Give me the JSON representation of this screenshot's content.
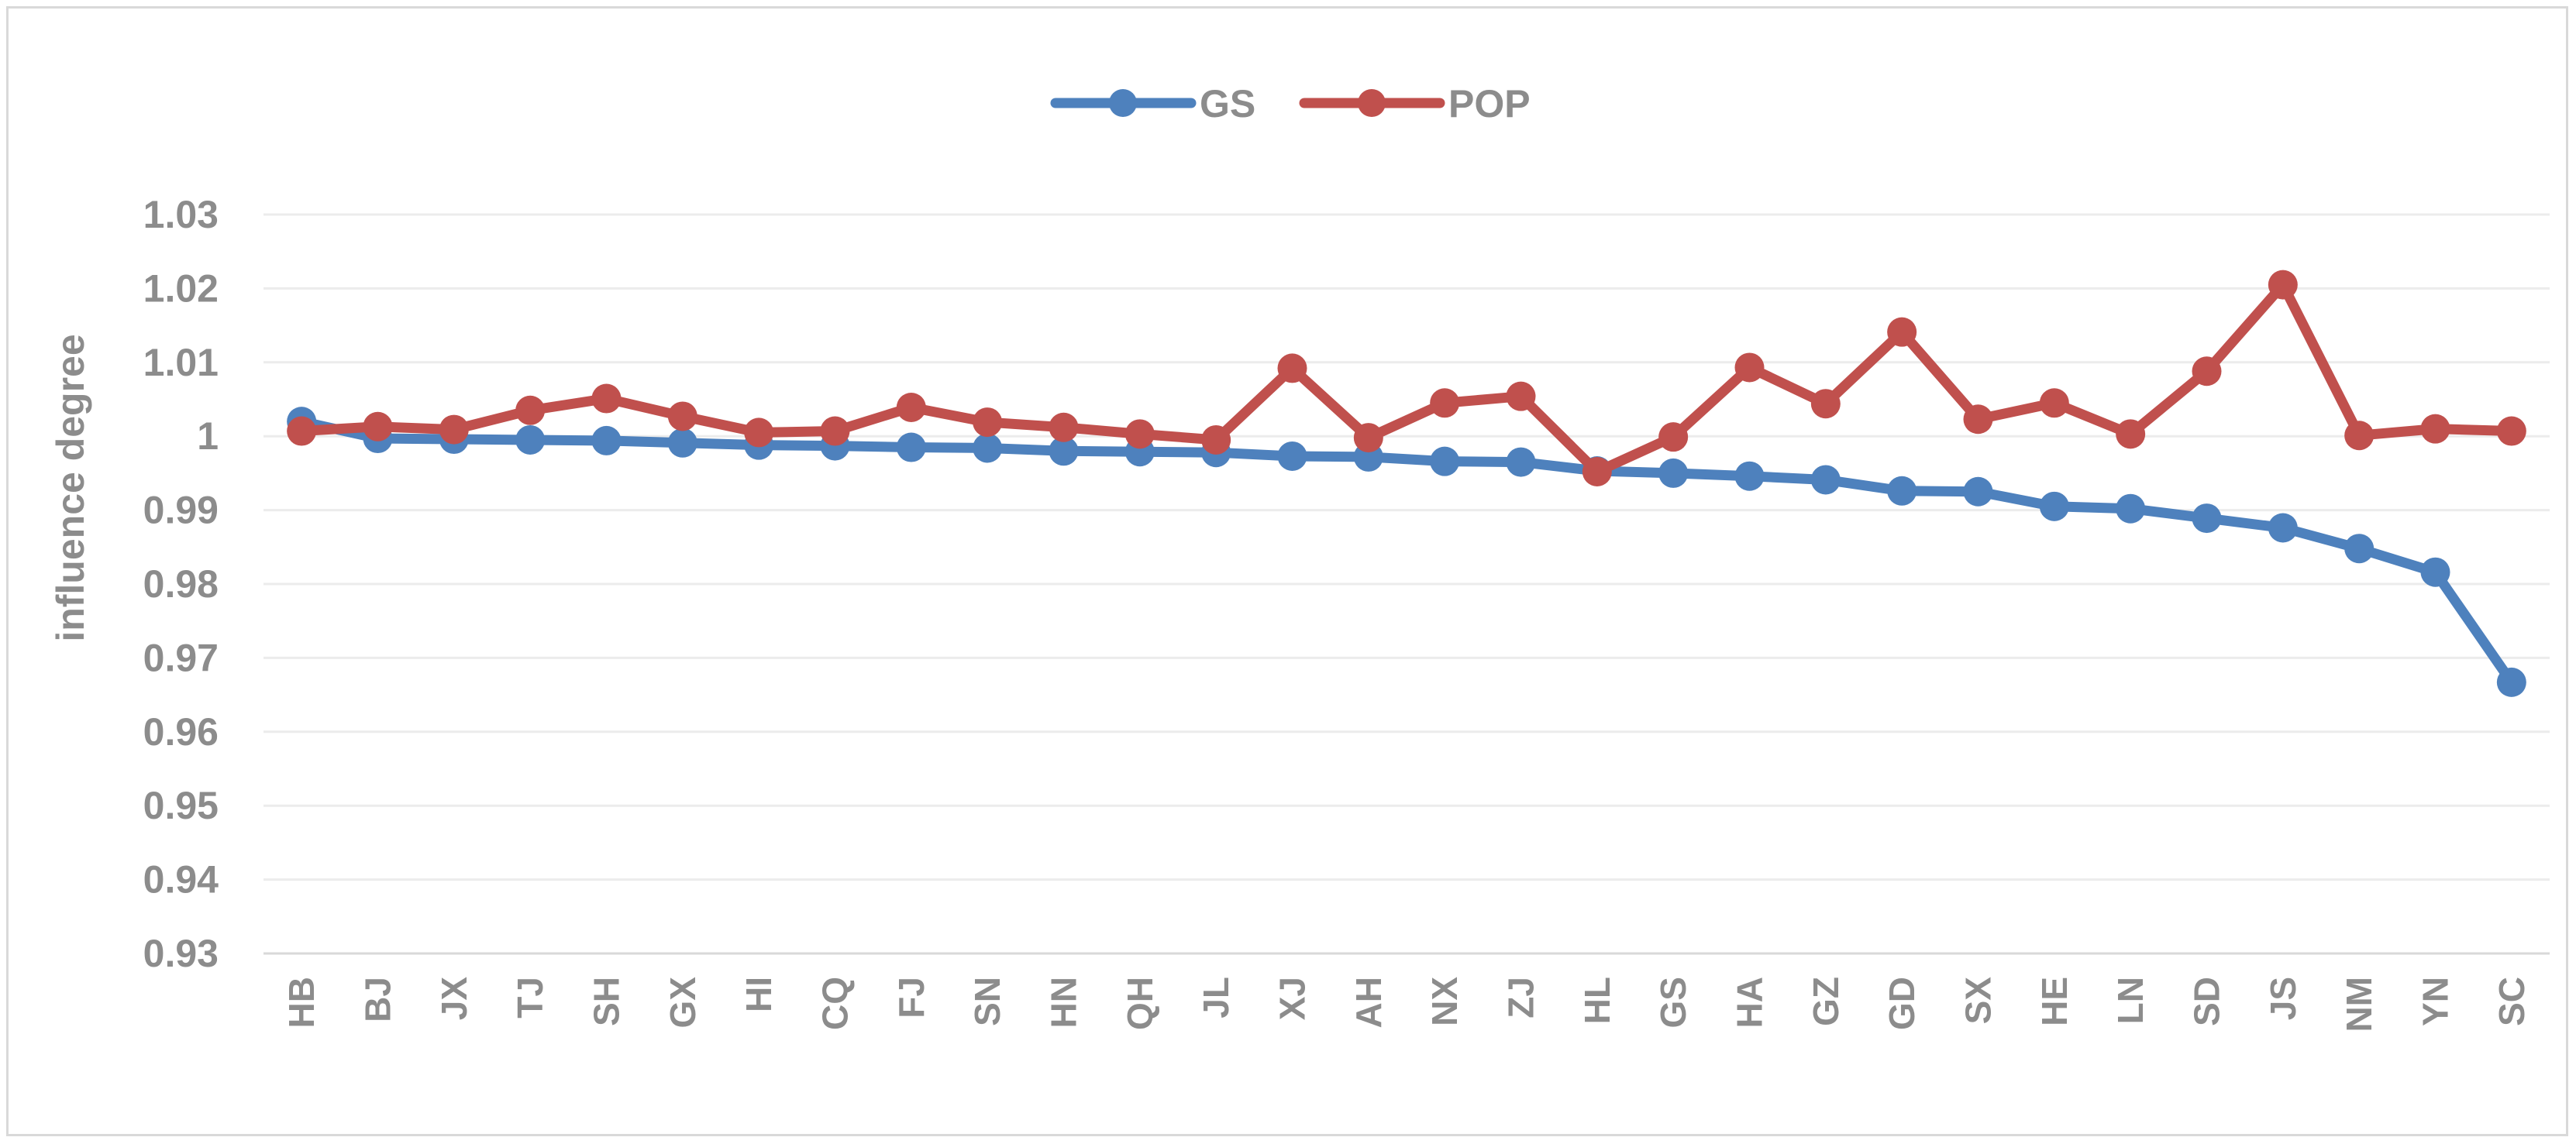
{
  "chart_data": {
    "type": "line",
    "title": "",
    "xlabel": "",
    "ylabel": "influence degree",
    "ylim": [
      0.93,
      1.03
    ],
    "yticks": [
      "0.93",
      "0.94",
      "0.95",
      "0.96",
      "0.97",
      "0.98",
      "0.99",
      "1",
      "1.01",
      "1.02",
      "1.03"
    ],
    "grid": true,
    "legend_position": "top-center",
    "categories": [
      "HB",
      "BJ",
      "JX",
      "TJ",
      "SH",
      "GX",
      "HI",
      "CQ",
      "FJ",
      "SN",
      "HN",
      "QH",
      "JL",
      "XJ",
      "AH",
      "NX",
      "ZJ",
      "HL",
      "GS",
      "HA",
      "GZ",
      "GD",
      "SX",
      "HE",
      "LN",
      "SD",
      "JS",
      "NM",
      "YN",
      "SC"
    ],
    "series": [
      {
        "name": "GS",
        "color": "#4e81bd",
        "values": [
          1.002,
          0.9997,
          0.9996,
          0.9995,
          0.9994,
          0.9991,
          0.9988,
          0.9987,
          0.9985,
          0.9984,
          0.998,
          0.9979,
          0.9978,
          0.9973,
          0.9972,
          0.9966,
          0.9965,
          0.9953,
          0.995,
          0.9946,
          0.9941,
          0.9926,
          0.9925,
          0.9905,
          0.9902,
          0.9889,
          0.9876,
          0.9848,
          0.9816,
          0.9667
        ]
      },
      {
        "name": "POP",
        "color": "#c0504d",
        "values": [
          1.0007,
          1.0013,
          1.0009,
          1.0035,
          1.0051,
          1.0027,
          1.0005,
          1.0007,
          1.0039,
          1.0019,
          1.0012,
          1.0003,
          0.9995,
          1.0092,
          0.9998,
          1.0045,
          1.0054,
          0.9952,
          0.9999,
          1.0093,
          1.0044,
          1.0141,
          1.0023,
          1.0045,
          1.0003,
          1.0088,
          1.0205,
          1.0001,
          1.001,
          1.0007
        ]
      }
    ]
  }
}
